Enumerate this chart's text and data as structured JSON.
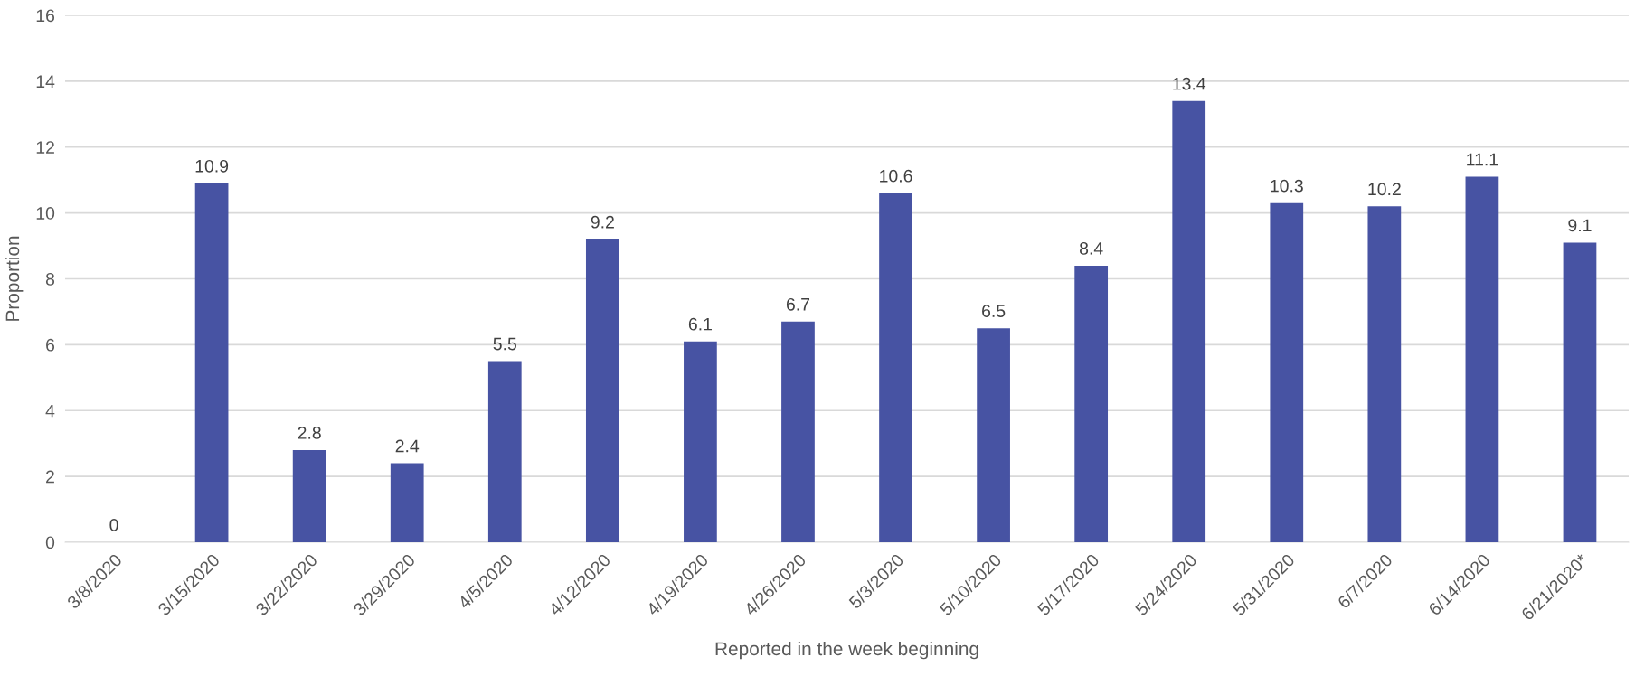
{
  "chart_data": {
    "type": "bar",
    "xlabel": "Reported in the week beginning",
    "ylabel": "Proportion",
    "categories": [
      "3/8/2020",
      "3/15/2020",
      "3/22/2020",
      "3/29/2020",
      "4/5/2020",
      "4/12/2020",
      "4/19/2020",
      "4/26/2020",
      "5/3/2020",
      "5/10/2020",
      "5/17/2020",
      "5/24/2020",
      "5/31/2020",
      "6/7/2020",
      "6/14/2020",
      "6/21/2020*"
    ],
    "values": [
      0,
      10.9,
      2.8,
      2.4,
      5.5,
      9.2,
      6.1,
      6.7,
      10.6,
      6.5,
      8.4,
      13.4,
      10.3,
      10.2,
      11.1,
      9.1
    ],
    "color": "#4753a3",
    "ylim": [
      0,
      16
    ],
    "yticks": [
      0,
      2,
      4,
      6,
      8,
      10,
      12,
      14,
      16
    ],
    "grid": "y",
    "data_labels": true,
    "legend": false
  }
}
